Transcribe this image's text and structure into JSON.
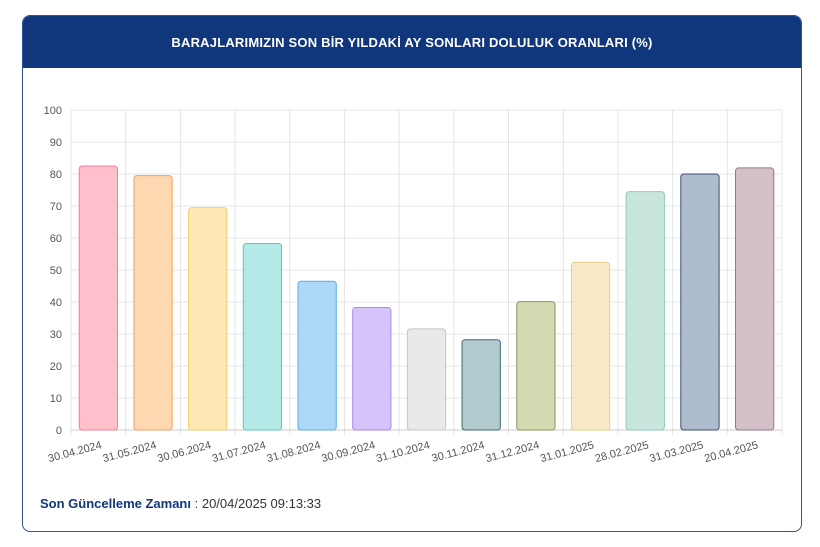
{
  "header": {
    "title": "BARAJLARIMIZIN SON BİR YILDAKİ AY SONLARI DOLULUK ORANLARI (%)"
  },
  "footer": {
    "label": "Son Güncelleme Zamanı",
    "value": ": 20/04/2025 09:13:33"
  },
  "chart_data": {
    "type": "bar",
    "title": "BARAJLARIMIZIN SON BİR YILDAKİ AY SONLARI DOLULUK ORANLARI (%)",
    "xlabel": "",
    "ylabel": "",
    "ylim": [
      0,
      100
    ],
    "yticks": [
      0,
      10,
      20,
      30,
      40,
      50,
      60,
      70,
      80,
      90,
      100
    ],
    "grid": true,
    "legend": "none",
    "categories": [
      "30.04.2024",
      "31.05.2024",
      "30.06.2024",
      "31.07.2024",
      "31.08.2024",
      "30.09.2024",
      "31.10.2024",
      "30.11.2024",
      "31.12.2024",
      "31.01.2025",
      "28.02.2025",
      "31.03.2025",
      "20.04.2025"
    ],
    "values": [
      82.5,
      79.5,
      69.5,
      58.3,
      46.5,
      38.3,
      31.6,
      28.2,
      40.1,
      52.4,
      74.5,
      80.0,
      81.9
    ],
    "fill_colors": [
      "#ffc0cc",
      "#ffd7b0",
      "#ffe7b3",
      "#b3e9e6",
      "#aed8f7",
      "#d5c3fb",
      "#e8e9eb",
      "#b1cbcf",
      "#d5d9b2",
      "#f9e9c6",
      "#c9e6de",
      "#aebcce",
      "#d4c0c8"
    ],
    "stroke_colors": [
      "#f07f9c",
      "#f2a360",
      "#f2cf6e",
      "#5cc8c0",
      "#5aaee6",
      "#a98ae6",
      "#c4c6c9",
      "#3e6b73",
      "#8e9455",
      "#e8cf8e",
      "#8fcbb6",
      "#3a4f73",
      "#9a7684"
    ]
  }
}
